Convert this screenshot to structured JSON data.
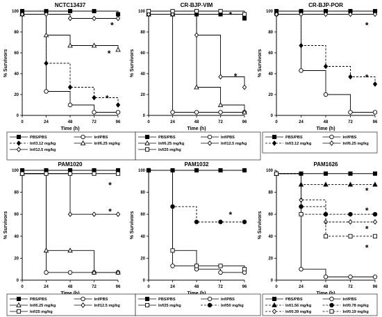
{
  "chart_data": [
    {
      "type": "line",
      "title": "NCTC13437",
      "xlabel": "Time (h)",
      "ylabel": "% Survivors",
      "xlim": [
        0,
        96
      ],
      "ylim": [
        0,
        100
      ],
      "xticks": [
        "0",
        "24",
        "48",
        "72",
        "96"
      ],
      "yticks": [
        "0",
        "20",
        "40",
        "60",
        "80",
        "100"
      ],
      "series": [
        {
          "name": "PBS/PBS",
          "marker": "square-filled",
          "dash": "solid",
          "x": [
            0,
            24,
            48,
            72,
            96
          ],
          "y": [
            100,
            100,
            100,
            100,
            97
          ]
        },
        {
          "name": "Inf/PBS",
          "marker": "circle-open",
          "dash": "solid",
          "x": [
            0,
            24,
            48,
            72,
            96
          ],
          "y": [
            97,
            23,
            10,
            3,
            3
          ]
        },
        {
          "name": "Inf/3.12 mg/kg",
          "marker": "diamond-filled",
          "dash": "dashed",
          "x": [
            0,
            24,
            48,
            72,
            96
          ],
          "y": [
            97,
            50,
            27,
            17,
            10
          ]
        },
        {
          "name": "Inf/6.25 mg/kg",
          "marker": "triangle-open",
          "dash": "solid",
          "x": [
            0,
            24,
            48,
            72,
            96
          ],
          "y": [
            97,
            77,
            67,
            67,
            63
          ]
        },
        {
          "name": "Inf/12.5 mg/kg",
          "marker": "diamond-open",
          "dash": "solid",
          "x": [
            0,
            24,
            48,
            72,
            96
          ],
          "y": [
            97,
            97,
            93,
            93,
            93
          ]
        }
      ],
      "annotations": [
        {
          "text": "*",
          "x": 90,
          "y": 87
        },
        {
          "text": "*",
          "x": 87,
          "y": 60
        },
        {
          "text": "*",
          "x": 85,
          "y": 17
        }
      ],
      "legend": {
        "position": "bottom",
        "columns": 2
      }
    },
    {
      "type": "line",
      "title": "CR-BJP-VIM",
      "xlabel": "Time (h)",
      "ylabel": "% Survivors",
      "xlim": [
        0,
        96
      ],
      "ylim": [
        0,
        100
      ],
      "xticks": [
        "0",
        "24",
        "48",
        "72",
        "96"
      ],
      "yticks": [
        "0",
        "20",
        "40",
        "60",
        "80",
        "100"
      ],
      "series": [
        {
          "name": "PBS/PBS",
          "marker": "square-filled",
          "dash": "solid",
          "x": [
            0,
            24,
            48,
            72,
            96
          ],
          "y": [
            97,
            97,
            97,
            97,
            93
          ]
        },
        {
          "name": "Inf/PBS",
          "marker": "circle-open",
          "dash": "solid",
          "x": [
            0,
            24,
            48,
            72,
            96
          ],
          "y": [
            97,
            3,
            3,
            3,
            3
          ]
        },
        {
          "name": "Inf/6.25 mg/kg",
          "marker": "triangle-open",
          "dash": "solid",
          "x": [
            0,
            24,
            48,
            72,
            96
          ],
          "y": [
            97,
            97,
            27,
            10,
            3
          ]
        },
        {
          "name": "Inf/12.5 mg/kg",
          "marker": "diamond-open",
          "dash": "solid",
          "x": [
            0,
            24,
            48,
            72,
            96
          ],
          "y": [
            97,
            97,
            77,
            37,
            27
          ]
        },
        {
          "name": "Inf/25 mg/kg",
          "marker": "square-open",
          "dash": "solid",
          "x": [
            0,
            24,
            48,
            72,
            96
          ],
          "y": [
            100,
            100,
            100,
            100,
            97
          ]
        }
      ],
      "annotations": [
        {
          "text": "*",
          "x": 82,
          "y": 97
        },
        {
          "text": "*",
          "x": 87,
          "y": 38
        }
      ],
      "legend": {
        "position": "bottom",
        "columns": 2
      }
    },
    {
      "type": "line",
      "title": "CR-BJP-POR",
      "xlabel": "Time (h)",
      "ylabel": "% Survivors",
      "xlim": [
        0,
        96
      ],
      "ylim": [
        0,
        100
      ],
      "xticks": [
        "0",
        "24",
        "48",
        "72",
        "96"
      ],
      "yticks": [
        "0",
        "20",
        "40",
        "60",
        "80",
        "100"
      ],
      "series": [
        {
          "name": "PBS/PBS",
          "marker": "square-filled",
          "dash": "solid",
          "x": [
            0,
            24,
            48,
            72,
            96
          ],
          "y": [
            100,
            100,
            100,
            100,
            100
          ]
        },
        {
          "name": "Inf/PBS",
          "marker": "circle-open",
          "dash": "solid",
          "x": [
            0,
            24,
            48,
            72,
            96
          ],
          "y": [
            97,
            43,
            20,
            3,
            3
          ]
        },
        {
          "name": "Inf/3.12 mg/kg",
          "marker": "diamond-filled",
          "dash": "dashed",
          "x": [
            0,
            24,
            48,
            72,
            96
          ],
          "y": [
            97,
            67,
            47,
            37,
            30
          ]
        },
        {
          "name": "Inf/6.25 mg/kg",
          "marker": "diamond-open",
          "dash": "solid",
          "x": [
            0,
            24,
            48,
            72,
            96
          ],
          "y": [
            97,
            97,
            97,
            97,
            97
          ]
        }
      ],
      "annotations": [
        {
          "text": "*",
          "x": 88,
          "y": 87
        },
        {
          "text": "*",
          "x": 88,
          "y": 37
        }
      ],
      "legend": {
        "position": "bottom",
        "columns": 2
      }
    },
    {
      "type": "line",
      "title": "PAM1020",
      "xlabel": "Time (h)",
      "ylabel": "% Survivors",
      "xlim": [
        0,
        96
      ],
      "ylim": [
        0,
        100
      ],
      "xticks": [
        "0",
        "24",
        "48",
        "72",
        "96"
      ],
      "yticks": [
        "0",
        "20",
        "40",
        "60",
        "80",
        "100"
      ],
      "series": [
        {
          "name": "PBS/PBS",
          "marker": "square-filled",
          "dash": "solid",
          "x": [
            0,
            24,
            48,
            72,
            96
          ],
          "y": [
            100,
            100,
            100,
            100,
            100
          ]
        },
        {
          "name": "Inf/PBS",
          "marker": "circle-open",
          "dash": "solid",
          "x": [
            0,
            24,
            48,
            72,
            96
          ],
          "y": [
            97,
            7,
            7,
            7,
            7
          ]
        },
        {
          "name": "Inf/6.25 mg/kg",
          "marker": "triangle-open",
          "dash": "solid",
          "x": [
            0,
            24,
            48,
            72,
            96
          ],
          "y": [
            97,
            27,
            27,
            7,
            7
          ]
        },
        {
          "name": "Inf/12.5 mg/kg",
          "marker": "diamond-open",
          "dash": "solid",
          "x": [
            0,
            24,
            48,
            72,
            96
          ],
          "y": [
            97,
            97,
            60,
            60,
            60
          ]
        },
        {
          "name": "Inf/25 mg/kg",
          "marker": "square-open",
          "dash": "solid",
          "x": [
            0,
            24,
            48,
            72,
            96
          ],
          "y": [
            97,
            97,
            97,
            97,
            97
          ]
        }
      ],
      "annotations": [
        {
          "text": "*",
          "x": 88,
          "y": 87
        },
        {
          "text": "*",
          "x": 88,
          "y": 63
        }
      ],
      "legend": {
        "position": "bottom",
        "columns": 2
      }
    },
    {
      "type": "line",
      "title": "PAM1032",
      "xlabel": "Time (h)",
      "ylabel": "% Survivors",
      "xlim": [
        0,
        96
      ],
      "ylim": [
        0,
        100
      ],
      "xticks": [
        "0",
        "24",
        "48",
        "72",
        "96"
      ],
      "yticks": [
        "0",
        "20",
        "40",
        "60",
        "80",
        "100"
      ],
      "series": [
        {
          "name": "PBS/PBS",
          "marker": "square-filled",
          "dash": "solid",
          "x": [
            0,
            24,
            48,
            72,
            96
          ],
          "y": [
            100,
            100,
            100,
            100,
            100
          ]
        },
        {
          "name": "Inf/PBS",
          "marker": "circle-open",
          "dash": "solid",
          "x": [
            0,
            24,
            48,
            72,
            96
          ],
          "y": [
            100,
            13,
            10,
            7,
            7
          ]
        },
        {
          "name": "Inf/25 mg/kg",
          "marker": "square-open",
          "dash": "solid",
          "x": [
            0,
            24,
            48,
            72,
            96
          ],
          "y": [
            100,
            27,
            13,
            13,
            10
          ]
        },
        {
          "name": "Inf/50 mg/kg",
          "marker": "circle-filled",
          "dash": "dashed",
          "x": [
            0,
            24,
            48,
            72,
            96
          ],
          "y": [
            100,
            67,
            53,
            53,
            53
          ]
        }
      ],
      "annotations": [
        {
          "text": "*",
          "x": 82,
          "y": 60
        }
      ],
      "legend": {
        "position": "bottom",
        "columns": 2
      }
    },
    {
      "type": "line",
      "title": "PAM1626",
      "xlabel": "Time (h)",
      "ylabel": "% Survivors",
      "xlim": [
        0,
        96
      ],
      "ylim": [
        0,
        100
      ],
      "xticks": [
        "0",
        "24",
        "48",
        "72",
        "96"
      ],
      "yticks": [
        "0",
        "20",
        "40",
        "60",
        "80",
        "100"
      ],
      "series": [
        {
          "name": "PBS/PBS",
          "marker": "square-filled",
          "dash": "solid",
          "x": [
            0,
            24,
            48,
            72,
            96
          ],
          "y": [
            97,
            97,
            97,
            97,
            97
          ]
        },
        {
          "name": "Inf/PBS",
          "marker": "circle-open",
          "dash": "solid",
          "x": [
            0,
            24,
            48,
            72,
            96
          ],
          "y": [
            97,
            10,
            3,
            3,
            3
          ]
        },
        {
          "name": "Inf/1.56 mg/kg",
          "marker": "triangle-filled",
          "dash": "dashed",
          "x": [
            0,
            24,
            48,
            72,
            96
          ],
          "y": [
            97,
            87,
            87,
            87,
            87
          ]
        },
        {
          "name": "Inf/0.78 mg/kg",
          "marker": "circle-filled",
          "dash": "dashed",
          "x": [
            0,
            24,
            48,
            72,
            96
          ],
          "y": [
            97,
            67,
            60,
            60,
            60
          ]
        },
        {
          "name": "Inf/0.39 mg/kg",
          "marker": "diamond-open",
          "dash": "dashed",
          "x": [
            0,
            24,
            48,
            72,
            96
          ],
          "y": [
            97,
            73,
            53,
            53,
            53
          ]
        },
        {
          "name": "Inf/0.19 mg/kg",
          "marker": "square-open",
          "dash": "dashed",
          "x": [
            0,
            24,
            48,
            72,
            96
          ],
          "y": [
            97,
            60,
            40,
            40,
            40
          ]
        }
      ],
      "annotations": [
        {
          "text": "*",
          "x": 88,
          "y": 82
        },
        {
          "text": "*",
          "x": 88,
          "y": 64
        },
        {
          "text": "*",
          "x": 88,
          "y": 47
        },
        {
          "text": "*",
          "x": 88,
          "y": 30
        }
      ],
      "legend": {
        "position": "bottom",
        "columns": 2
      }
    }
  ]
}
